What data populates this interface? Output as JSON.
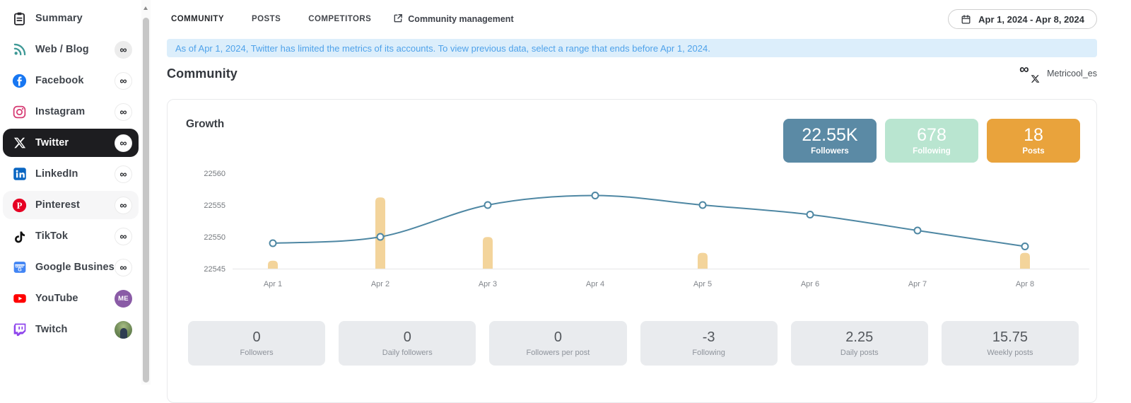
{
  "sidebar": {
    "items": [
      {
        "id": "summary",
        "label": "Summary",
        "icon": "summary",
        "badge": "none"
      },
      {
        "id": "web-blog",
        "label": "Web / Blog",
        "icon": "rss",
        "badge": "infinity",
        "badge_variant": "gray"
      },
      {
        "id": "facebook",
        "label": "Facebook",
        "icon": "facebook",
        "badge": "infinity"
      },
      {
        "id": "instagram",
        "label": "Instagram",
        "icon": "instagram",
        "badge": "infinity"
      },
      {
        "id": "twitter",
        "label": "Twitter",
        "icon": "twitter-x",
        "badge": "infinity",
        "active": true
      },
      {
        "id": "linkedin",
        "label": "LinkedIn",
        "icon": "linkedin",
        "badge": "infinity"
      },
      {
        "id": "pinterest",
        "label": "Pinterest",
        "icon": "pinterest",
        "badge": "infinity",
        "highlight": true
      },
      {
        "id": "tiktok",
        "label": "TikTok",
        "icon": "tiktok",
        "badge": "infinity"
      },
      {
        "id": "google-business",
        "label": "Google Busines...",
        "icon": "google-business",
        "badge": "infinity"
      },
      {
        "id": "youtube",
        "label": "YouTube",
        "icon": "youtube",
        "badge": "avatar-me",
        "badge_text": "ME"
      },
      {
        "id": "twitch",
        "label": "Twitch",
        "icon": "twitch",
        "badge": "avatar-photo"
      }
    ]
  },
  "header": {
    "tabs": [
      {
        "id": "community",
        "label": "COMMUNITY",
        "active": true
      },
      {
        "id": "posts",
        "label": "POSTS",
        "active": false
      },
      {
        "id": "competitors",
        "label": "COMPETITORS",
        "active": false
      }
    ],
    "management_link": "Community management",
    "date_range": "Apr 1, 2024 - Apr 8, 2024"
  },
  "banner": {
    "text": "As of Apr 1, 2024, Twitter has limited the metrics of its accounts. To view previous data, select a range that ends before Apr 1, 2024."
  },
  "page": {
    "title": "Community",
    "account": "Metricool_es"
  },
  "growth_card": {
    "title": "Growth",
    "summary_chips": [
      {
        "value": "22.55K",
        "label": "Followers",
        "color": "#5b8aa5"
      },
      {
        "value": "678",
        "label": "Following",
        "color": "#b9e5d0"
      },
      {
        "value": "18",
        "label": "Posts",
        "color": "#e9a33c"
      }
    ],
    "metric_tiles": [
      {
        "value": "0",
        "label": "Followers"
      },
      {
        "value": "0",
        "label": "Daily followers"
      },
      {
        "value": "0",
        "label": "Followers per post"
      },
      {
        "value": "-3",
        "label": "Following"
      },
      {
        "value": "2.25",
        "label": "Daily posts"
      },
      {
        "value": "15.75",
        "label": "Weekly posts"
      }
    ]
  },
  "chart_data": {
    "type": "line+bar",
    "title": "Growth",
    "categories": [
      "Apr 1",
      "Apr 2",
      "Apr 3",
      "Apr 4",
      "Apr 5",
      "Apr 6",
      "Apr 7",
      "Apr 8"
    ],
    "series": [
      {
        "name": "Followers",
        "type": "line",
        "color": "#4e87a3",
        "values": [
          22549,
          22550,
          22555,
          22556.5,
          22555,
          22553.5,
          22551,
          22548.5
        ]
      },
      {
        "name": "Posts",
        "type": "bar",
        "color": "#f3d49b",
        "values": [
          1,
          9,
          4,
          0,
          2,
          0,
          0,
          2
        ]
      }
    ],
    "y_axis": {
      "ticks": [
        22545,
        22550,
        22555,
        22560
      ],
      "min": 22545,
      "max": 22560
    },
    "x_axis": {
      "labels": [
        "Apr 1",
        "Apr 2",
        "Apr 3",
        "Apr 4",
        "Apr 5",
        "Apr 6",
        "Apr 7",
        "Apr 8"
      ]
    },
    "grid": false,
    "legend": "none"
  }
}
